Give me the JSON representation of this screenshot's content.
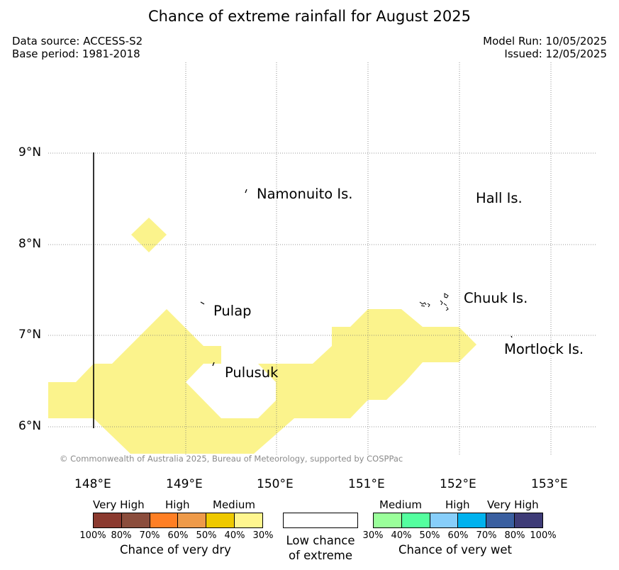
{
  "header": {
    "title": "Chance of extreme rainfall for August 2025",
    "data_source": "Data source: ACCESS-S2",
    "base_period": "Base period: 1981-2018",
    "model_run": "Model Run: 10/05/2025",
    "issued": "Issued: 12/05/2025"
  },
  "map": {
    "lat_labels": [
      "9°N",
      "8°N",
      "7°N",
      "6°N"
    ],
    "lon_labels": [
      "148°E",
      "149°E",
      "150°E",
      "151°E",
      "152°E",
      "153°E"
    ],
    "places": [
      "Namonuito Is.",
      "Hall Is.",
      "Pulap",
      "Chuuk Is.",
      "Mortlock Is.",
      "Pulusuk"
    ],
    "shading_color": "#fbf38c",
    "shading_category": "Medium (30%-40%) chance of very dry",
    "copyright": "© Commonwealth of Australia 2025, Bureau of Meteorology, supported by COSPPac"
  },
  "legend": {
    "dry": {
      "headings": [
        "Very High",
        "High",
        "Medium"
      ],
      "colors": [
        "#8b3a2f",
        "#8b4d3c",
        "#ff7f24",
        "#ee9a49",
        "#eec900",
        "#fff68f"
      ],
      "ticks": [
        "100%",
        "80%",
        "70%",
        "60%",
        "50%",
        "40%",
        "30%"
      ],
      "title": "Chance of very dry"
    },
    "neutral": {
      "color": "#ffffff",
      "line1": "Low chance",
      "line2": "of extreme"
    },
    "wet": {
      "headings": [
        "Medium",
        "High",
        "Very High"
      ],
      "colors": [
        "#9aff9a",
        "#54ff9f",
        "#87cefa",
        "#00b2ee",
        "#3a5fa0",
        "#3e3b77"
      ],
      "ticks": [
        "30%",
        "40%",
        "50%",
        "60%",
        "70%",
        "80%",
        "100%"
      ],
      "title": "Chance of very wet"
    }
  }
}
